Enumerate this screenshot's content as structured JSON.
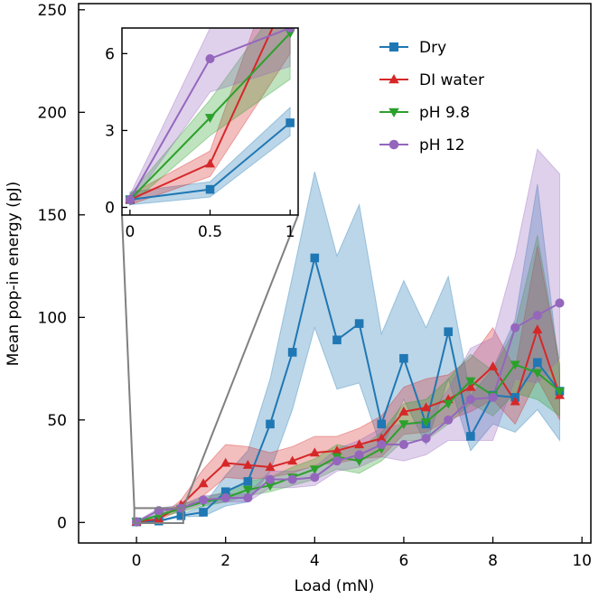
{
  "chart_data": {
    "type": "line",
    "xlabel": "Load (mN)",
    "ylabel": "Mean pop-in energy (pJ)",
    "xlim": [
      -1.3,
      10.2
    ],
    "ylim": [
      -10,
      253
    ],
    "xticks": [
      0,
      2,
      4,
      6,
      8,
      10
    ],
    "yticks": [
      0,
      50,
      100,
      150,
      200,
      250
    ],
    "x": [
      0,
      0.5,
      1,
      1.5,
      2,
      2.5,
      3,
      3.5,
      4,
      4.5,
      5,
      5.5,
      6,
      6.5,
      7,
      7.5,
      8,
      8.5,
      9,
      9.5
    ],
    "series": [
      {
        "name": "Dry",
        "color": "#1f77b4",
        "marker": "square",
        "values": [
          0.3,
          0.7,
          3.3,
          5,
          15,
          20,
          48,
          83,
          129,
          89,
          97,
          48,
          80,
          48,
          93,
          42,
          62,
          61,
          78,
          64
        ],
        "lower": [
          0.1,
          0.4,
          2.8,
          3,
          8,
          10,
          25,
          55,
          95,
          65,
          68,
          36,
          60,
          38,
          70,
          35,
          48,
          44,
          55,
          40
        ],
        "upper": [
          0.6,
          1.0,
          3.9,
          8,
          23,
          35,
          70,
          120,
          171,
          130,
          155,
          92,
          118,
          95,
          120,
          62,
          75,
          99,
          165,
          72
        ]
      },
      {
        "name": "DI water",
        "color": "#d62728",
        "marker": "triangle-up",
        "values": [
          0.3,
          1.7,
          8.5,
          19,
          29,
          28,
          27,
          30,
          34,
          35,
          38,
          41,
          54,
          56,
          60,
          66,
          76,
          59,
          94,
          62
        ],
        "lower": [
          0.1,
          1.2,
          6,
          13,
          22,
          21,
          22,
          24,
          28,
          29,
          31,
          32,
          43,
          44,
          50,
          54,
          60,
          48,
          70,
          50
        ],
        "upper": [
          0.5,
          2.2,
          11,
          26,
          38,
          37,
          34,
          37,
          42,
          42,
          46,
          52,
          66,
          70,
          72,
          80,
          95,
          75,
          135,
          77
        ]
      },
      {
        "name": "pH 9.8",
        "color": "#2ca02c",
        "marker": "triangle-down",
        "values": [
          0.3,
          3.5,
          6.8,
          10,
          12,
          16,
          18,
          22,
          26,
          32,
          30,
          36,
          48,
          49,
          58,
          69,
          62,
          77,
          73,
          64
        ],
        "lower": [
          0.1,
          2.8,
          5,
          8,
          10,
          13,
          15,
          18,
          21,
          26,
          24,
          30,
          40,
          40,
          48,
          58,
          52,
          63,
          60,
          52
        ],
        "upper": [
          0.5,
          4.2,
          8.5,
          12,
          15,
          20,
          22,
          27,
          31,
          38,
          36,
          44,
          58,
          60,
          70,
          82,
          74,
          95,
          140,
          78
        ]
      },
      {
        "name": "pH 12",
        "color": "#9467bd",
        "marker": "circle",
        "values": [
          0.3,
          5.8,
          7,
          11,
          12,
          12,
          21,
          21,
          22,
          30,
          33,
          38,
          38,
          41,
          50,
          60,
          61,
          95,
          101,
          107
        ],
        "lower": [
          0.1,
          4.5,
          5.5,
          9,
          10,
          10,
          17,
          17,
          18,
          25,
          27,
          32,
          30,
          33,
          40,
          40,
          40,
          70,
          68,
          80
        ],
        "upper": [
          0.5,
          7,
          8.5,
          13,
          14,
          14,
          25,
          25,
          27,
          36,
          40,
          46,
          48,
          50,
          65,
          85,
          90,
          130,
          182,
          170
        ]
      }
    ],
    "inset": {
      "xlim": [
        -0.05,
        1.05
      ],
      "ylim": [
        -0.3,
        7
      ],
      "xticks": [
        0,
        0.5,
        1
      ],
      "xtick_labels": [
        "0",
        "0.5",
        "1"
      ],
      "yticks": [
        0,
        3,
        6
      ],
      "ytick_labels": [
        "0",
        "3",
        "6"
      ],
      "zoom_region": {
        "x": [
          -0.05,
          1.05
        ],
        "y": [
          -0.3,
          7
        ]
      }
    },
    "legend": {
      "position": "top-right",
      "entries": [
        "Dry",
        "DI water",
        "pH 9.8",
        "pH 12"
      ]
    }
  }
}
